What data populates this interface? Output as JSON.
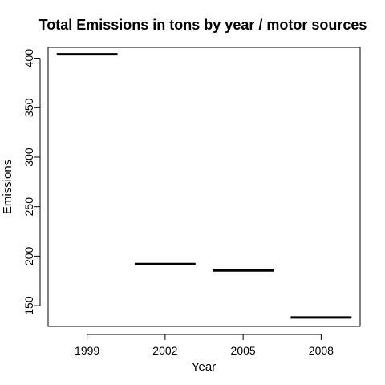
{
  "chart_data": {
    "type": "bar",
    "title": "Total Emissions in tons by year / motor sources",
    "xlabel": "Year",
    "ylabel": "Emissions",
    "categories": [
      "1999",
      "2002",
      "2005",
      "2008"
    ],
    "values": [
      404,
      192,
      185.5,
      138
    ],
    "ylim": [
      129,
      411
    ],
    "yticks": [
      150,
      200,
      250,
      300,
      350,
      400
    ],
    "grid": false
  }
}
